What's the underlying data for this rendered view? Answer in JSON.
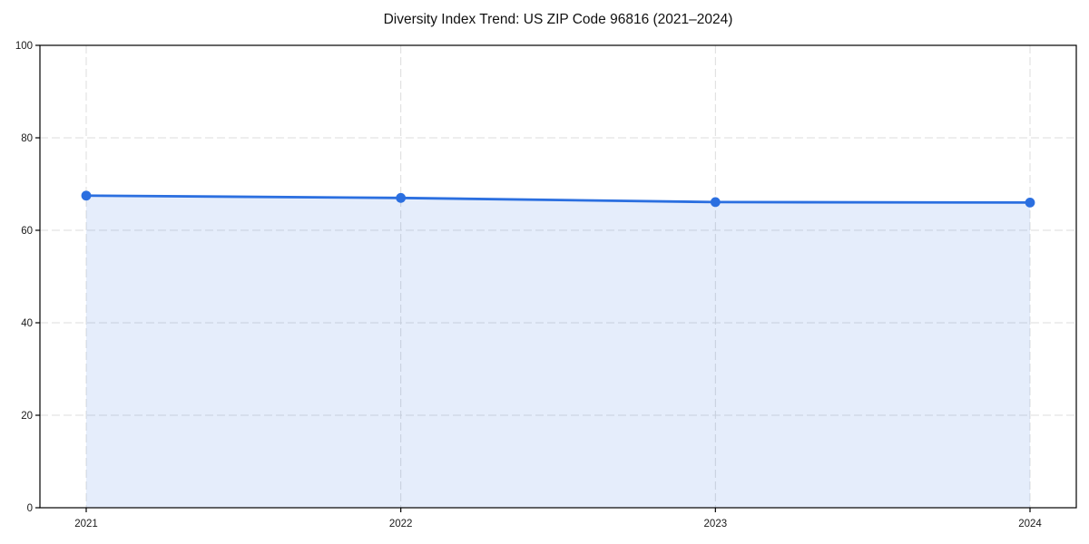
{
  "chart_data": {
    "type": "area",
    "title": "Diversity Index Trend: US ZIP Code 96816 (2021–2024)",
    "xlabel": "",
    "ylabel": "",
    "x_labels": [
      "2021",
      "2022",
      "2023",
      "2024"
    ],
    "series": [
      {
        "name": "Diversity Index",
        "values": [
          67.5,
          67.0,
          66.1,
          66.0
        ]
      }
    ],
    "ylim": [
      0,
      100
    ],
    "yticks": [
      0,
      20,
      40,
      60,
      80,
      100
    ],
    "grid": true,
    "grid_style": "dashed",
    "legend_position": "none",
    "colors": {
      "line": "#2b6fe0",
      "marker": "#2b6fe0",
      "fill": "rgba(43,111,224,0.12)",
      "grid": "#dcdcdc",
      "spine": "#000000",
      "tick_text": "#1a1a1a",
      "title_text": "#111111",
      "background": "#ffffff"
    }
  }
}
